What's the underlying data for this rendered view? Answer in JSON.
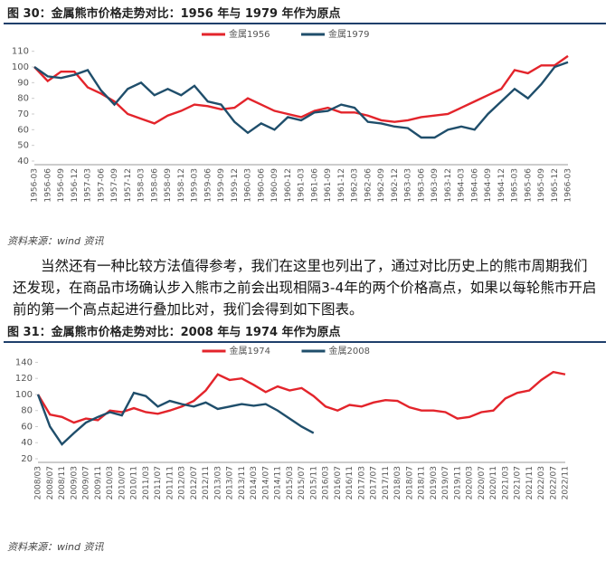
{
  "paragraph": "当然还有一种比较方法值得参考，我们在这里也列出了，通过对比历史上的熊市周期我们还发现，在商品市场确认步入熊市之前会出现相隔3-4年的两个价格高点，如果以每轮熊市开启前的第一个高点起进行叠加比对，我们会得到如下图表。",
  "chart_data": [
    {
      "type": "line",
      "title": "图 30：金属熊市价格走势对比：1956 年与 1979 年作为原点",
      "source": "资料来源：wind 资讯",
      "grid": false,
      "legend": "top",
      "categories": [
        "1956-03",
        "1956-06",
        "1956-09",
        "1956-12",
        "1957-03",
        "1957-06",
        "1957-09",
        "1957-12",
        "1958-03",
        "1958-06",
        "1958-09",
        "1958-12",
        "1959-03",
        "1959-06",
        "1959-09",
        "1959-12",
        "1960-03",
        "1960-06",
        "1960-09",
        "1960-12",
        "1961-03",
        "1961-06",
        "1961-09",
        "1961-12",
        "1962-03",
        "1962-06",
        "1962-09",
        "1962-12",
        "1963-03",
        "1963-06",
        "1963-09",
        "1963-12",
        "1964-03",
        "1964-06",
        "1964-09",
        "1964-12",
        "1965-03",
        "1965-06",
        "1965-09",
        "1965-12",
        "1966-03"
      ],
      "ylim": [
        40,
        115
      ],
      "yticks": [
        40,
        50,
        60,
        70,
        80,
        90,
        100,
        110
      ],
      "series": [
        {
          "name": "金属1956",
          "color": "#e3242b",
          "values": [
            100,
            91,
            97,
            97,
            87,
            83,
            78,
            70,
            67,
            64,
            69,
            72,
            76,
            75,
            73,
            74,
            80,
            76,
            72,
            70,
            68,
            72,
            74,
            71,
            71,
            69,
            66,
            65,
            66,
            68,
            69,
            70,
            74,
            78,
            82,
            86,
            98,
            96,
            101,
            101,
            107
          ]
        },
        {
          "name": "金属1979",
          "color": "#1f4e6b",
          "values": [
            100,
            94,
            93,
            95,
            98,
            85,
            76,
            86,
            90,
            82,
            86,
            82,
            88,
            78,
            76,
            65,
            58,
            64,
            60,
            68,
            66,
            71,
            72,
            76,
            74,
            65,
            64,
            62,
            61,
            55,
            55,
            60,
            62,
            60,
            70,
            78,
            86,
            80,
            89,
            100,
            103
          ]
        }
      ]
    },
    {
      "type": "line",
      "title": "图 31：金属熊市价格走势对比：2008 年与 1974 年作为原点",
      "source": "资料来源：wind 资讯",
      "grid": false,
      "legend": "top",
      "categories": [
        "2008/03",
        "2008/07",
        "2008/11",
        "2009/03",
        "2009/07",
        "2009/11",
        "2010/03",
        "2010/07",
        "2010/11",
        "2011/03",
        "2011/07",
        "2011/11",
        "2012/03",
        "2012/07",
        "2012/11",
        "2013/03",
        "2013/07",
        "2013/11",
        "2014/03",
        "2014/07",
        "2014/11",
        "2015/03",
        "2015/07",
        "2015/11",
        "2016/03",
        "2016/07",
        "2016/11",
        "2017/03",
        "2017/07",
        "2017/11",
        "2018/03",
        "2018/07",
        "2018/11",
        "2019/03",
        "2019/07",
        "2019/11",
        "2020/03",
        "2020/07",
        "2020/11",
        "2021/03",
        "2021/07",
        "2021/11",
        "2022/03",
        "2022/07",
        "2022/11"
      ],
      "ylim": [
        20,
        145
      ],
      "yticks": [
        20,
        40,
        60,
        80,
        100,
        120,
        140
      ],
      "series": [
        {
          "name": "金属1974",
          "color": "#e3242b",
          "values": [
            100,
            75,
            72,
            65,
            70,
            68,
            80,
            78,
            83,
            78,
            76,
            80,
            85,
            92,
            105,
            125,
            118,
            120,
            112,
            103,
            110,
            105,
            108,
            98,
            85,
            80,
            87,
            85,
            90,
            93,
            92,
            84,
            80,
            80,
            78,
            70,
            72,
            78,
            80,
            95,
            102,
            105,
            118,
            128,
            125
          ]
        },
        {
          "name": "金属2008",
          "color": "#1f4e6b",
          "values": [
            100,
            60,
            38,
            52,
            65,
            72,
            78,
            74,
            102,
            98,
            85,
            92,
            88,
            85,
            90,
            82,
            85,
            88,
            86,
            88,
            80,
            70,
            60,
            52,
            null,
            null,
            null,
            null,
            null,
            null,
            null,
            null,
            null,
            null,
            null,
            null,
            null,
            null,
            null,
            null,
            null,
            null,
            null,
            null,
            null
          ]
        }
      ]
    }
  ]
}
